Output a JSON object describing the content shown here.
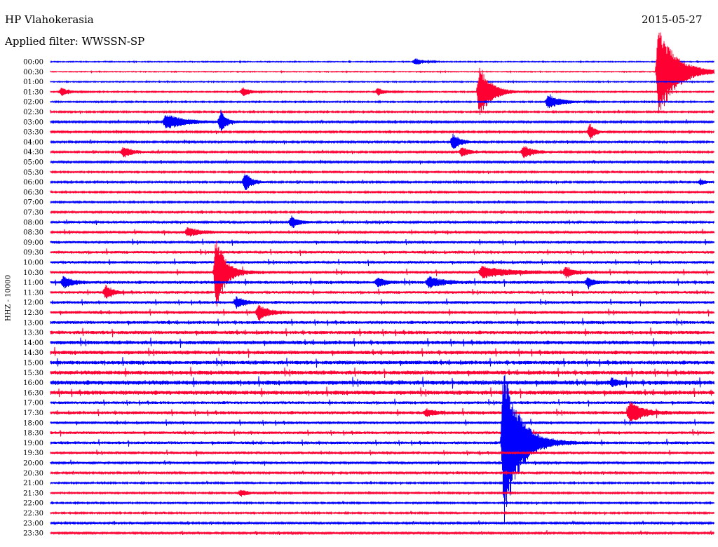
{
  "header": {
    "station": "HP Vlahokerasia",
    "filter": "Applied filter: WWSSN-SP",
    "date": "2015-05-27"
  },
  "chart_data": {
    "type": "line",
    "title": "HP Vlahokerasia",
    "subtitle": "Applied filter: WWSSN-SP",
    "ylabel": "HHZ - 10000",
    "date": "2015-05-27",
    "row_labels": [
      "00:00",
      "00:30",
      "01:00",
      "01:30",
      "02:00",
      "02:30",
      "03:00",
      "03:30",
      "04:00",
      "04:30",
      "05:00",
      "05:30",
      "06:00",
      "06:30",
      "07:00",
      "07:30",
      "08:00",
      "08:30",
      "09:00",
      "09:30",
      "10:00",
      "10:30",
      "11:00",
      "11:30",
      "12:00",
      "12:30",
      "13:00",
      "13:30",
      "14:00",
      "14:30",
      "15:00",
      "15:30",
      "16:00",
      "16:30",
      "17:00",
      "17:30",
      "18:00",
      "18:30",
      "19:00",
      "19:30",
      "20:00",
      "20:30",
      "21:00",
      "21:30",
      "22:00",
      "22:30",
      "23:00",
      "23:30"
    ],
    "row_minutes": 30,
    "colors": [
      "#0000ff",
      "#ff0033"
    ],
    "noise_level": [
      0.5,
      0.4,
      0.5,
      0.6,
      0.7,
      0.8,
      1.0,
      0.9,
      1.0,
      0.9,
      1.0,
      0.8,
      0.9,
      0.8,
      0.8,
      0.9,
      1.2,
      1.3,
      1.5,
      1.5,
      1.5,
      1.6,
      1.8,
      1.5,
      1.6,
      1.7,
      1.8,
      2.0,
      2.2,
      2.2,
      2.2,
      2.3,
      2.6,
      2.4,
      1.6,
      1.8,
      1.6,
      1.6,
      1.6,
      1.4,
      1.2,
      1.0,
      0.8,
      0.8,
      0.8,
      0.8,
      1.0,
      1.1
    ],
    "events": [
      {
        "row": 0,
        "minute": 16.5,
        "amplitude": 5,
        "duration": 0.6
      },
      {
        "row": 1,
        "minute": 27.5,
        "amplitude": 68,
        "duration": 1.4
      },
      {
        "row": 3,
        "minute": 0.5,
        "amplitude": 6,
        "duration": 0.6
      },
      {
        "row": 3,
        "minute": 8.7,
        "amplitude": 6,
        "duration": 0.6
      },
      {
        "row": 3,
        "minute": 14.8,
        "amplitude": 5,
        "duration": 0.6
      },
      {
        "row": 3,
        "minute": 19.4,
        "amplitude": 38,
        "duration": 0.9
      },
      {
        "row": 4,
        "minute": 22.5,
        "amplitude": 10,
        "duration": 1.0
      },
      {
        "row": 6,
        "minute": 5.2,
        "amplitude": 11,
        "duration": 1.5
      },
      {
        "row": 6,
        "minute": 7.7,
        "amplitude": 16,
        "duration": 0.4
      },
      {
        "row": 7,
        "minute": 24.4,
        "amplitude": 12,
        "duration": 0.4
      },
      {
        "row": 8,
        "minute": 18.2,
        "amplitude": 11,
        "duration": 0.6
      },
      {
        "row": 9,
        "minute": 3.3,
        "amplitude": 8,
        "duration": 0.7
      },
      {
        "row": 9,
        "minute": 18.6,
        "amplitude": 7,
        "duration": 0.6
      },
      {
        "row": 9,
        "minute": 21.4,
        "amplitude": 9,
        "duration": 0.8
      },
      {
        "row": 12,
        "minute": 8.8,
        "amplitude": 14,
        "duration": 0.5
      },
      {
        "row": 12,
        "minute": 29.4,
        "amplitude": 4,
        "duration": 0.4
      },
      {
        "row": 16,
        "minute": 10.9,
        "amplitude": 9,
        "duration": 0.5
      },
      {
        "row": 17,
        "minute": 6.2,
        "amplitude": 6,
        "duration": 1.0
      },
      {
        "row": 21,
        "minute": 7.5,
        "amplitude": 56,
        "duration": 0.7
      },
      {
        "row": 21,
        "minute": 19.5,
        "amplitude": 8,
        "duration": 2.0
      },
      {
        "row": 21,
        "minute": 23.3,
        "amplitude": 7,
        "duration": 0.6
      },
      {
        "row": 22,
        "minute": 0.6,
        "amplitude": 8,
        "duration": 0.6
      },
      {
        "row": 22,
        "minute": 14.8,
        "amplitude": 7,
        "duration": 0.5
      },
      {
        "row": 22,
        "minute": 17.1,
        "amplitude": 8,
        "duration": 1.0
      },
      {
        "row": 22,
        "minute": 24.3,
        "amplitude": 7,
        "duration": 0.4
      },
      {
        "row": 23,
        "minute": 2.5,
        "amplitude": 10,
        "duration": 0.5
      },
      {
        "row": 24,
        "minute": 8.4,
        "amplitude": 8,
        "duration": 0.6
      },
      {
        "row": 25,
        "minute": 9.4,
        "amplitude": 11,
        "duration": 0.7
      },
      {
        "row": 32,
        "minute": 25.4,
        "amplitude": 5,
        "duration": 0.5
      },
      {
        "row": 35,
        "minute": 17.0,
        "amplitude": 5,
        "duration": 0.7
      },
      {
        "row": 35,
        "minute": 26.2,
        "amplitude": 16,
        "duration": 1.0
      },
      {
        "row": 38,
        "minute": 20.5,
        "amplitude": 120,
        "duration": 1.2
      },
      {
        "row": 43,
        "minute": 8.6,
        "amplitude": 5,
        "duration": 0.6
      }
    ]
  }
}
